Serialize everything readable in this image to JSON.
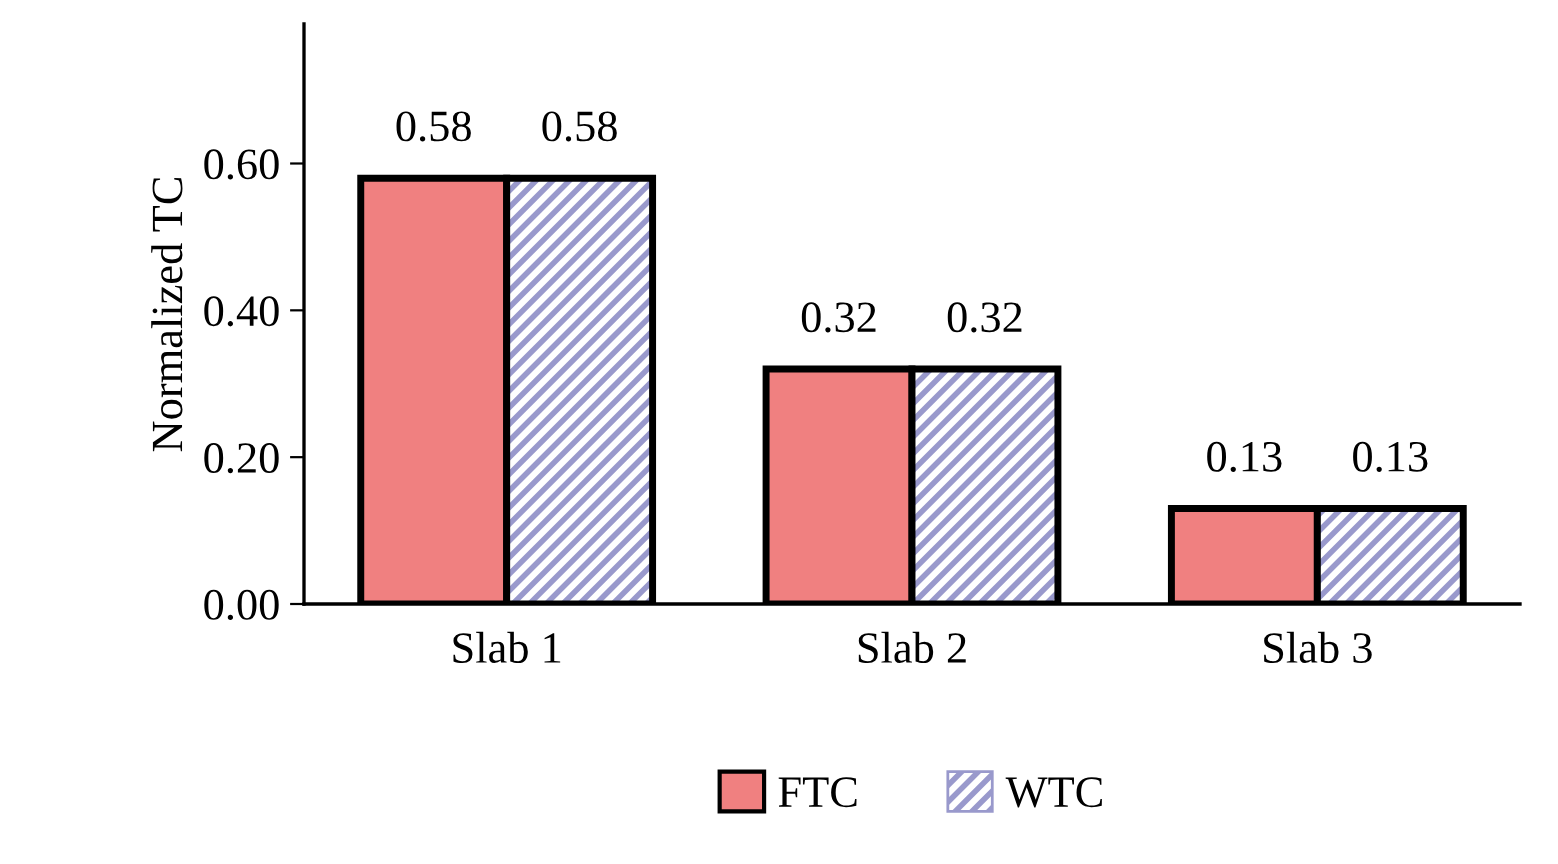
{
  "chart_data": {
    "type": "bar",
    "ylabel": "Normalized TC",
    "categories": [
      "Slab 1",
      "Slab 2",
      "Slab 3"
    ],
    "series": [
      {
        "name": "FTC",
        "color": "#f08080",
        "values": [
          0.58,
          0.32,
          0.13
        ]
      },
      {
        "name": "WTC",
        "color": "#9999cc",
        "values": [
          0.58,
          0.32,
          0.13
        ]
      }
    ],
    "ylim": [
      0,
      0.79
    ],
    "yticks": [
      {
        "value": 0,
        "label": "0.00"
      },
      {
        "value": 0.2,
        "label": "0.20"
      },
      {
        "value": 0.4,
        "label": "0.40"
      },
      {
        "value": 0.6,
        "label": "0.60"
      }
    ],
    "data_labels": true,
    "legend": "bottom",
    "grid": false
  }
}
